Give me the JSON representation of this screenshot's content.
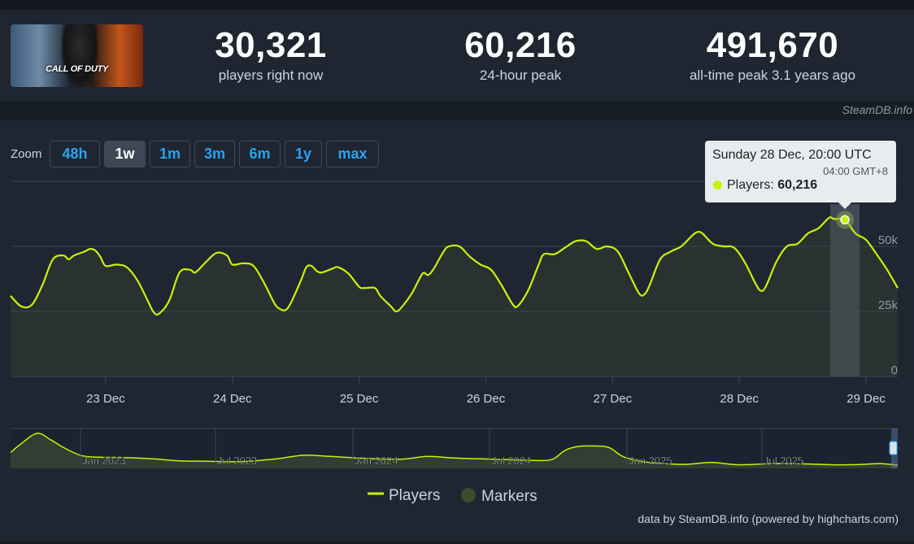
{
  "game": {
    "capsule_logo": "CALL OF DUTY"
  },
  "stats": [
    {
      "value": "30,321",
      "label": "players right now"
    },
    {
      "value": "60,216",
      "label": "24-hour peak"
    },
    {
      "value": "491,670",
      "label": "all-time peak 3.1 years ago"
    }
  ],
  "credit": "SteamDB.info",
  "zoom": {
    "label": "Zoom",
    "buttons": [
      "48h",
      "1w",
      "1m",
      "3m",
      "6m",
      "1y",
      "max"
    ],
    "active": "1w"
  },
  "tooltip": {
    "title": "Sunday 28 Dec, 20:00 UTC",
    "local": "04:00 GMT+8",
    "series": "Players: ",
    "value": "60,216"
  },
  "legend": {
    "players": "Players",
    "markers": "Markers"
  },
  "footer": "data by SteamDB.info (powered by highcharts.com)",
  "colors": {
    "line": "#c8f20a",
    "marker": "#3d4b2a",
    "background": "#1f2631",
    "accent": "#29a3ef"
  },
  "chart_data": {
    "type": "line",
    "title": "",
    "xlabel": "",
    "ylabel": "",
    "x_ticks": [
      "23 Dec",
      "24 Dec",
      "25 Dec",
      "26 Dec",
      "27 Dec",
      "28 Dec",
      "29 Dec"
    ],
    "y_ticks": [
      "0",
      "25k",
      "50k"
    ],
    "ylim": [
      0,
      75000
    ],
    "grid": true,
    "legend_position": "bottom-center",
    "series": [
      {
        "name": "Players",
        "points": [
          {
            "t": "22 Dec 06:00",
            "y": 31000
          },
          {
            "t": "22 Dec 08:00",
            "y": 27000
          },
          {
            "t": "22 Dec 10:00",
            "y": 27500
          },
          {
            "t": "22 Dec 12:00",
            "y": 35000
          },
          {
            "t": "22 Dec 14:00",
            "y": 45000
          },
          {
            "t": "22 Dec 16:00",
            "y": 46500
          },
          {
            "t": "22 Dec 17:00",
            "y": 45000
          },
          {
            "t": "22 Dec 18:00",
            "y": 46500
          },
          {
            "t": "22 Dec 20:00",
            "y": 48000
          },
          {
            "t": "22 Dec 21:00",
            "y": 49000
          },
          {
            "t": "22 Dec 22:00",
            "y": 48500
          },
          {
            "t": "22 Dec 23:00",
            "y": 46000
          },
          {
            "t": "23 Dec 00:00",
            "y": 42500
          },
          {
            "t": "23 Dec 02:00",
            "y": 43000
          },
          {
            "t": "23 Dec 04:00",
            "y": 42000
          },
          {
            "t": "23 Dec 06:00",
            "y": 37000
          },
          {
            "t": "23 Dec 08:00",
            "y": 29000
          },
          {
            "t": "23 Dec 09:00",
            "y": 25000
          },
          {
            "t": "23 Dec 10:00",
            "y": 24000
          },
          {
            "t": "23 Dec 12:00",
            "y": 29000
          },
          {
            "t": "23 Dec 14:00",
            "y": 40000
          },
          {
            "t": "23 Dec 16:00",
            "y": 41000
          },
          {
            "t": "23 Dec 17:00",
            "y": 40000
          },
          {
            "t": "23 Dec 19:00",
            "y": 44000
          },
          {
            "t": "23 Dec 21:00",
            "y": 47500
          },
          {
            "t": "23 Dec 23:00",
            "y": 46500
          },
          {
            "t": "24 Dec 00:00",
            "y": 43000
          },
          {
            "t": "24 Dec 02:00",
            "y": 43500
          },
          {
            "t": "24 Dec 04:00",
            "y": 42500
          },
          {
            "t": "24 Dec 06:00",
            "y": 36000
          },
          {
            "t": "24 Dec 08:00",
            "y": 28000
          },
          {
            "t": "24 Dec 09:00",
            "y": 26000
          },
          {
            "t": "24 Dec 10:00",
            "y": 25500
          },
          {
            "t": "24 Dec 11:00",
            "y": 28000
          },
          {
            "t": "24 Dec 13:00",
            "y": 37000
          },
          {
            "t": "24 Dec 14:00",
            "y": 42000
          },
          {
            "t": "24 Dec 15:00",
            "y": 42500
          },
          {
            "t": "24 Dec 16:00",
            "y": 40500
          },
          {
            "t": "24 Dec 17:00",
            "y": 40000
          },
          {
            "t": "24 Dec 19:00",
            "y": 41500
          },
          {
            "t": "24 Dec 20:00",
            "y": 42000
          },
          {
            "t": "24 Dec 22:00",
            "y": 39500
          },
          {
            "t": "25 Dec 00:00",
            "y": 34500
          },
          {
            "t": "25 Dec 01:00",
            "y": 34000
          },
          {
            "t": "25 Dec 03:00",
            "y": 34000
          },
          {
            "t": "25 Dec 04:00",
            "y": 31000
          },
          {
            "t": "25 Dec 06:00",
            "y": 27000
          },
          {
            "t": "25 Dec 07:00",
            "y": 25000
          },
          {
            "t": "25 Dec 08:00",
            "y": 26500
          },
          {
            "t": "25 Dec 10:00",
            "y": 32000
          },
          {
            "t": "25 Dec 12:00",
            "y": 39500
          },
          {
            "t": "25 Dec 13:00",
            "y": 39000
          },
          {
            "t": "25 Dec 14:00",
            "y": 41000
          },
          {
            "t": "25 Dec 16:00",
            "y": 48000
          },
          {
            "t": "25 Dec 17:00",
            "y": 50000
          },
          {
            "t": "25 Dec 19:00",
            "y": 50000
          },
          {
            "t": "25 Dec 21:00",
            "y": 46000
          },
          {
            "t": "25 Dec 23:00",
            "y": 43000
          },
          {
            "t": "26 Dec 01:00",
            "y": 41000
          },
          {
            "t": "26 Dec 03:00",
            "y": 35000
          },
          {
            "t": "26 Dec 05:00",
            "y": 28000
          },
          {
            "t": "26 Dec 06:00",
            "y": 27000
          },
          {
            "t": "26 Dec 08:00",
            "y": 33000
          },
          {
            "t": "26 Dec 10:00",
            "y": 43000
          },
          {
            "t": "26 Dec 11:00",
            "y": 47000
          },
          {
            "t": "26 Dec 13:00",
            "y": 47000
          },
          {
            "t": "26 Dec 15:00",
            "y": 49500
          },
          {
            "t": "26 Dec 17:00",
            "y": 52000
          },
          {
            "t": "26 Dec 19:00",
            "y": 52000
          },
          {
            "t": "26 Dec 21:00",
            "y": 49000
          },
          {
            "t": "26 Dec 23:00",
            "y": 50000
          },
          {
            "t": "27 Dec 01:00",
            "y": 48000
          },
          {
            "t": "27 Dec 03:00",
            "y": 40000
          },
          {
            "t": "27 Dec 05:00",
            "y": 32000
          },
          {
            "t": "27 Dec 06:00",
            "y": 31500
          },
          {
            "t": "27 Dec 07:00",
            "y": 35000
          },
          {
            "t": "27 Dec 09:00",
            "y": 45000
          },
          {
            "t": "27 Dec 11:00",
            "y": 48000
          },
          {
            "t": "27 Dec 13:00",
            "y": 50000
          },
          {
            "t": "27 Dec 15:00",
            "y": 54000
          },
          {
            "t": "27 Dec 16:00",
            "y": 55500
          },
          {
            "t": "27 Dec 17:00",
            "y": 55000
          },
          {
            "t": "27 Dec 19:00",
            "y": 51000
          },
          {
            "t": "27 Dec 21:00",
            "y": 50000
          },
          {
            "t": "27 Dec 23:00",
            "y": 49500
          },
          {
            "t": "28 Dec 01:00",
            "y": 44000
          },
          {
            "t": "28 Dec 03:00",
            "y": 36000
          },
          {
            "t": "28 Dec 04:00",
            "y": 33000
          },
          {
            "t": "28 Dec 05:00",
            "y": 34500
          },
          {
            "t": "28 Dec 07:00",
            "y": 44000
          },
          {
            "t": "28 Dec 09:00",
            "y": 50000
          },
          {
            "t": "28 Dec 11:00",
            "y": 51000
          },
          {
            "t": "28 Dec 13:00",
            "y": 55000
          },
          {
            "t": "28 Dec 15:00",
            "y": 57000
          },
          {
            "t": "28 Dec 17:00",
            "y": 61000
          },
          {
            "t": "28 Dec 18:00",
            "y": 60500
          },
          {
            "t": "28 Dec 20:00",
            "y": 60216
          },
          {
            "t": "28 Dec 22:00",
            "y": 55000
          },
          {
            "t": "29 Dec 00:00",
            "y": 52500
          },
          {
            "t": "29 Dec 02:00",
            "y": 47000
          },
          {
            "t": "29 Dec 04:00",
            "y": 41000
          },
          {
            "t": "29 Dec 06:00",
            "y": 34000
          }
        ]
      },
      {
        "name": "Markers",
        "points": [
          {
            "t": "28 Dec 20:00",
            "y": 60216
          }
        ]
      }
    ],
    "navigator": {
      "x_ticks": [
        "Jan 2023",
        "Jul 2023",
        "Jan 2024",
        "Jul 2024",
        "Jan 2025",
        "Jul 2025"
      ]
    },
    "highlight": {
      "t": "28 Dec 20:00",
      "y": 60216
    }
  }
}
